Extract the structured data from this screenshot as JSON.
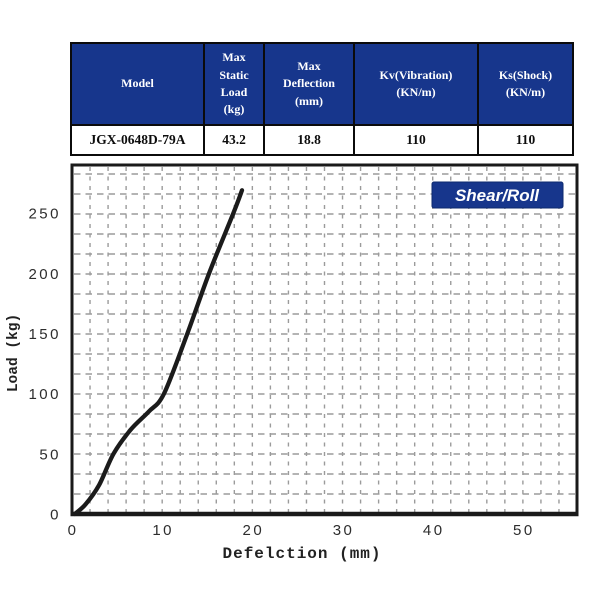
{
  "colors": {
    "accent_blue": "#17368c",
    "table_header_text": "#ffffff",
    "table_border": "#0b0b0b",
    "chart_frame": "#1a1a1a",
    "grid": "#9b9b9b",
    "curve": "#1b1b1b",
    "tick_text": "#2d2d2d",
    "badge_text": "#ffffff"
  },
  "spec_table": {
    "headers": [
      "Model",
      "Max\nStatic\nLoad\n(kg)",
      "Max\nDeflection\n(mm)",
      "Kv(Vibration)\n(KN/m)",
      "Ks(Shock)\n(KN/m)"
    ],
    "row": [
      "JGX-0648D-79A",
      "43.2",
      "18.8",
      "110",
      "110"
    ]
  },
  "chart_data": {
    "type": "line",
    "title": "",
    "badge": "Shear/Roll",
    "xlabel": "Defelction (mm)",
    "ylabel": "Load (kg)",
    "xlim": [
      0,
      56
    ],
    "ylim": [
      0,
      290
    ],
    "x_ticks": [
      0,
      10,
      20,
      30,
      40,
      50
    ],
    "y_ticks": [
      0,
      50,
      100,
      150,
      200,
      250
    ],
    "grid": "fine dashed grid, gray",
    "legend_position": "none",
    "series": [
      {
        "name": "shear-roll load-deflection curve",
        "points": [
          [
            0.3,
            0
          ],
          [
            1.5,
            8
          ],
          [
            3,
            24
          ],
          [
            4.6,
            50
          ],
          [
            6.5,
            70
          ],
          [
            8.5,
            85
          ],
          [
            10.2,
            100
          ],
          [
            12.8,
            150
          ],
          [
            15.2,
            200
          ],
          [
            17.9,
            250
          ],
          [
            18.85,
            269
          ]
        ]
      }
    ]
  }
}
